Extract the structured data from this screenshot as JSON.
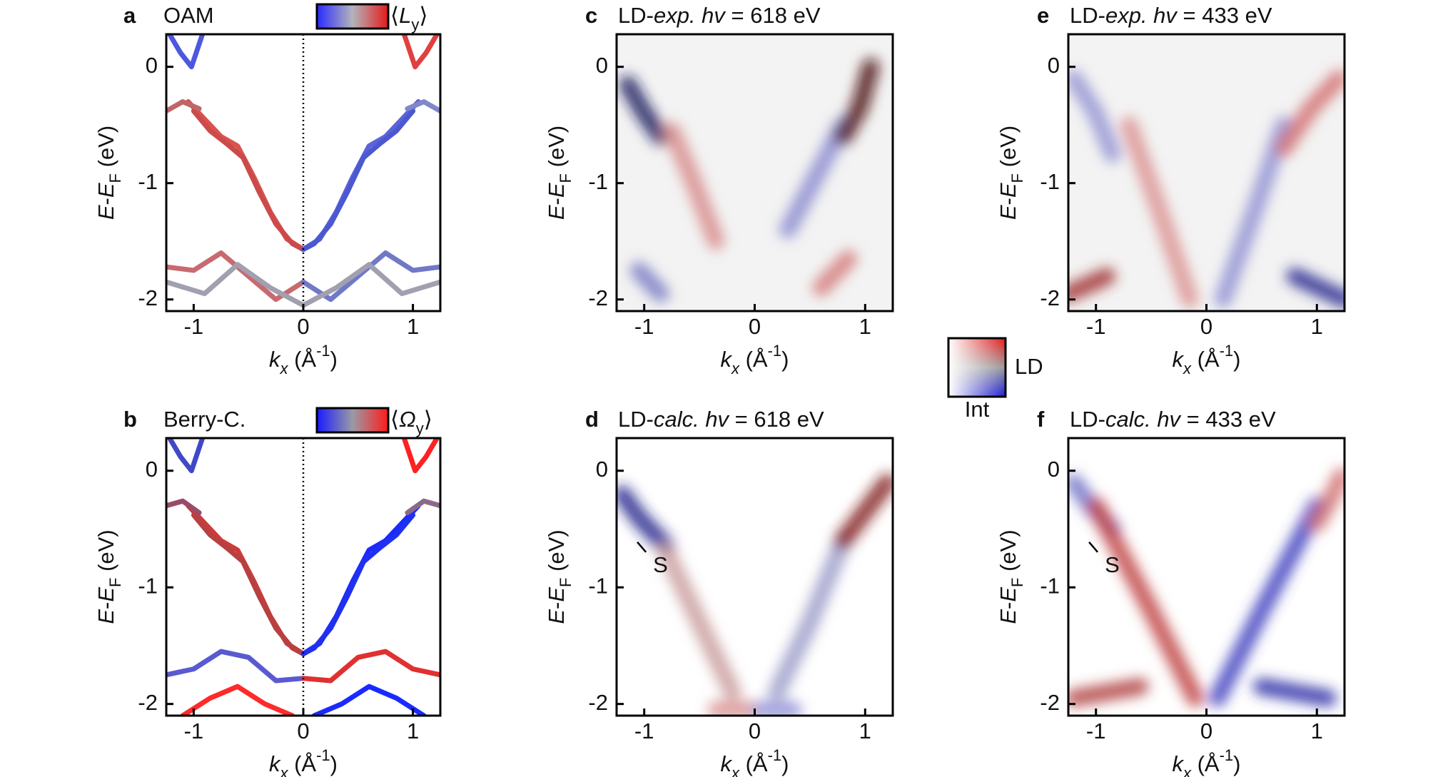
{
  "chart_data": [
    {
      "type": "line",
      "label": "a",
      "title": "OAM",
      "colorbar": {
        "colors": [
          "#2a2aff",
          "#b4b4bc",
          "#e41a1a"
        ],
        "label": [
          "⟨",
          "L",
          "y",
          "⟩"
        ]
      },
      "xlabel": [
        "k",
        "x",
        " (Å",
        "-1",
        ")"
      ],
      "ylabel": [
        "E",
        "-",
        "E",
        "F",
        " (eV)"
      ],
      "xlim": [
        -1.25,
        1.25
      ],
      "ylim": [
        -2.1,
        0.28
      ],
      "xticks": [
        -1,
        0,
        1
      ],
      "yticks": [
        -2,
        -1,
        0
      ],
      "zero_line": true,
      "series": [
        {
          "color": "#d9534f",
          "x": [
            -1.05,
            -0.9,
            -0.75,
            -0.6,
            -0.45,
            -0.3,
            -0.15,
            0
          ],
          "values": [
            -0.3,
            -0.45,
            -0.6,
            -0.68,
            -0.95,
            -1.25,
            -1.48,
            -1.57
          ]
        },
        {
          "color": "#cc4a4a",
          "x": [
            -1.0,
            -0.85,
            -0.7,
            -0.55,
            -0.4,
            -0.25,
            -0.1,
            0
          ],
          "values": [
            -0.38,
            -0.55,
            -0.66,
            -0.78,
            -1.08,
            -1.35,
            -1.52,
            -1.57
          ]
        },
        {
          "color": "#5a64d8",
          "x": [
            0,
            0.15,
            0.3,
            0.45,
            0.6,
            0.75,
            0.9,
            1.05
          ],
          "values": [
            -1.57,
            -1.48,
            -1.25,
            -0.95,
            -0.68,
            -0.6,
            -0.45,
            -0.3
          ]
        },
        {
          "color": "#4c58d0",
          "x": [
            0,
            0.1,
            0.25,
            0.4,
            0.55,
            0.7,
            0.85,
            1.0
          ],
          "values": [
            -1.57,
            -1.52,
            -1.35,
            -1.08,
            -0.78,
            -0.66,
            -0.55,
            -0.38
          ]
        },
        {
          "color": "#4c58e0",
          "x": [
            -1.22,
            -1.12,
            -1.02,
            -0.92
          ],
          "values": [
            0.28,
            0.12,
            0.0,
            0.28
          ]
        },
        {
          "color": "#c0666a",
          "x": [
            -1.25,
            -1.1,
            -0.95
          ],
          "values": [
            -0.38,
            -0.3,
            -0.36
          ]
        },
        {
          "color": "#e04040",
          "x": [
            0.92,
            1.02,
            1.12,
            1.22
          ],
          "values": [
            0.28,
            0.0,
            0.12,
            0.28
          ]
        },
        {
          "color": "#8088c8",
          "x": [
            0.95,
            1.1,
            1.25
          ],
          "values": [
            -0.36,
            -0.3,
            -0.38
          ]
        },
        {
          "color": "#c86a70",
          "x": [
            -1.25,
            -1.0,
            -0.75,
            -0.5,
            -0.25,
            0
          ],
          "values": [
            -1.72,
            -1.75,
            -1.6,
            -1.8,
            -2.0,
            -1.85
          ]
        },
        {
          "color": "#7078c8",
          "x": [
            0,
            0.25,
            0.5,
            0.75,
            1.0,
            1.25
          ],
          "values": [
            -1.85,
            -2.0,
            -1.8,
            -1.6,
            -1.75,
            -1.72
          ]
        },
        {
          "color": "#a0a0b0",
          "x": [
            -1.25,
            -0.9,
            -0.6,
            -0.3,
            0,
            0.3,
            0.6,
            0.9,
            1.25
          ],
          "values": [
            -1.85,
            -1.95,
            -1.7,
            -1.9,
            -2.05,
            -1.9,
            -1.7,
            -1.95,
            -1.85
          ]
        }
      ]
    },
    {
      "type": "line",
      "label": "b",
      "title": "Berry-C.",
      "colorbar": {
        "colors": [
          "#1a1aff",
          "#9a9aa6",
          "#ff1a1a"
        ],
        "label": [
          "⟨",
          "Ω",
          "y",
          "⟩"
        ]
      },
      "xlabel": [
        "k",
        "x",
        " (Å",
        "-1",
        ")"
      ],
      "ylabel": [
        "E",
        "-",
        "E",
        "F",
        " (eV)"
      ],
      "xlim": [
        -1.25,
        1.25
      ],
      "ylim": [
        -2.1,
        0.28
      ],
      "xticks": [
        -1,
        0,
        1
      ],
      "yticks": [
        -2,
        -1,
        0
      ],
      "zero_line": true,
      "series": [
        {
          "color": "#cc3b3b",
          "x": [
            -1.05,
            -0.9,
            -0.75,
            -0.6,
            -0.45,
            -0.3,
            -0.15,
            0
          ],
          "values": [
            -0.3,
            -0.45,
            -0.6,
            -0.68,
            -0.95,
            -1.25,
            -1.48,
            -1.57
          ]
        },
        {
          "color": "#b84040",
          "x": [
            -1.0,
            -0.85,
            -0.7,
            -0.55,
            -0.4,
            -0.25,
            -0.1,
            0
          ],
          "values": [
            -0.38,
            -0.55,
            -0.66,
            -0.78,
            -1.08,
            -1.35,
            -1.52,
            -1.57
          ]
        },
        {
          "color": "#1a2aff",
          "x": [
            0,
            0.15,
            0.3,
            0.45,
            0.6,
            0.75,
            0.9,
            1.05
          ],
          "values": [
            -1.57,
            -1.48,
            -1.25,
            -0.95,
            -0.68,
            -0.6,
            -0.45,
            -0.3
          ]
        },
        {
          "color": "#2030f0",
          "x": [
            0,
            0.1,
            0.25,
            0.4,
            0.55,
            0.7,
            0.85,
            1.0
          ],
          "values": [
            -1.57,
            -1.52,
            -1.35,
            -1.08,
            -0.78,
            -0.66,
            -0.55,
            -0.38
          ]
        },
        {
          "color": "#4048c8",
          "x": [
            -1.22,
            -1.12,
            -1.02,
            -0.92
          ],
          "values": [
            0.28,
            0.12,
            0.0,
            0.28
          ]
        },
        {
          "color": "#9a4a6a",
          "x": [
            -1.25,
            -1.1,
            -0.95
          ],
          "values": [
            -0.3,
            -0.26,
            -0.36
          ]
        },
        {
          "color": "#ff2020",
          "x": [
            0.92,
            1.02,
            1.12,
            1.22
          ],
          "values": [
            0.28,
            0.0,
            0.12,
            0.28
          ]
        },
        {
          "color": "#8a6a8a",
          "x": [
            0.95,
            1.1,
            1.25
          ],
          "values": [
            -0.36,
            -0.26,
            -0.3
          ]
        },
        {
          "color": "#ff2a2a",
          "x": [
            -1.1,
            -0.85,
            -0.6,
            -0.35,
            -0.1
          ],
          "values": [
            -2.1,
            -1.95,
            -1.85,
            -2.0,
            -2.1
          ]
        },
        {
          "color": "#1a2aff",
          "x": [
            0.1,
            0.35,
            0.6,
            0.85,
            1.1
          ],
          "values": [
            -2.1,
            -2.0,
            -1.85,
            -1.95,
            -2.1
          ]
        },
        {
          "color": "#5a5ad0",
          "x": [
            -1.25,
            -1.0,
            -0.75,
            -0.5,
            -0.25,
            0
          ],
          "values": [
            -1.75,
            -1.7,
            -1.55,
            -1.6,
            -1.8,
            -1.78
          ]
        },
        {
          "color": "#e03030",
          "x": [
            0,
            0.25,
            0.5,
            0.75,
            1.0,
            1.25
          ],
          "values": [
            -1.78,
            -1.8,
            -1.6,
            -1.55,
            -1.7,
            -1.75
          ]
        }
      ]
    },
    {
      "type": "heatmap",
      "label": "c",
      "title": [
        "LD-",
        "exp.",
        " hv",
        " = 618 eV"
      ],
      "background": "#f3f3f3",
      "xlabel": [
        "k",
        "x",
        " (Å",
        "-1",
        ")"
      ],
      "ylabel": [
        "E",
        "-",
        "E",
        "F",
        " (eV)"
      ],
      "xlim": [
        -1.25,
        1.25
      ],
      "ylim": [
        -2.1,
        0.28
      ],
      "xticks": [
        -1,
        0,
        1
      ],
      "yticks": [
        -2,
        -1,
        0
      ],
      "series": [
        {
          "color": "#15155e",
          "x": [
            -1.15,
            -1.0,
            -0.85
          ],
          "values": [
            -0.15,
            -0.4,
            -0.6
          ]
        },
        {
          "color": "#d88a8a",
          "x": [
            -0.75,
            -0.55,
            -0.35
          ],
          "values": [
            -0.55,
            -1.0,
            -1.5
          ]
        },
        {
          "color": "#8a8ad0",
          "x": [
            0.3,
            0.55,
            0.8
          ],
          "values": [
            -1.4,
            -0.95,
            -0.5
          ]
        },
        {
          "color": "#4a0e0e",
          "x": [
            0.8,
            0.95,
            1.05
          ],
          "values": [
            -0.6,
            -0.35,
            0.0
          ]
        },
        {
          "color": "#7a7ac4",
          "x": [
            -1.05,
            -0.85
          ],
          "values": [
            -1.75,
            -1.95
          ]
        },
        {
          "color": "#d47a7a",
          "x": [
            0.6,
            0.85
          ],
          "values": [
            -1.9,
            -1.65
          ]
        }
      ]
    },
    {
      "type": "heatmap",
      "label": "d",
      "title": [
        "LD-",
        "calc.",
        " hv",
        " = 618 eV"
      ],
      "background": "#ffffff",
      "xlabel": [
        "k",
        "x",
        " (Å",
        "-1",
        ")"
      ],
      "ylabel": [
        "E",
        "-",
        "E",
        "F",
        " (eV)"
      ],
      "xlim": [
        -1.25,
        1.25
      ],
      "ylim": [
        -2.1,
        0.28
      ],
      "xticks": [
        -1,
        0,
        1
      ],
      "yticks": [
        -2,
        -1,
        0
      ],
      "annotation": {
        "text": "S",
        "x": -0.92,
        "y": -0.82
      },
      "series": [
        {
          "color": "#22228a",
          "x": [
            -1.2,
            -1.05,
            -0.8
          ],
          "values": [
            -0.2,
            -0.4,
            -0.65
          ]
        },
        {
          "color": "#c89a9a",
          "x": [
            -0.8,
            -0.45,
            -0.2
          ],
          "values": [
            -0.7,
            -1.4,
            -1.9
          ]
        },
        {
          "color": "#9a9ac8",
          "x": [
            0.2,
            0.5,
            0.8
          ],
          "values": [
            -1.9,
            -1.3,
            -0.6
          ]
        },
        {
          "color": "#801818",
          "x": [
            0.8,
            1.0,
            1.2
          ],
          "values": [
            -0.6,
            -0.35,
            -0.1
          ]
        },
        {
          "color": "#d89090",
          "x": [
            -0.35,
            -0.05
          ],
          "values": [
            -2.05,
            -2.05
          ]
        },
        {
          "color": "#9090d8",
          "x": [
            0.05,
            0.35
          ],
          "values": [
            -2.05,
            -2.05
          ]
        }
      ]
    },
    {
      "type": "heatmap",
      "label": "e",
      "title": [
        "LD-",
        "exp.",
        " hv",
        " = 433 eV"
      ],
      "background": "#f3f3f3",
      "xlabel": [
        "k",
        "x",
        " (Å",
        "-1",
        ")"
      ],
      "ylabel": [
        "E",
        "-",
        "E",
        "F",
        " (eV)"
      ],
      "xlim": [
        -1.25,
        1.25
      ],
      "ylim": [
        -2.1,
        0.28
      ],
      "xticks": [
        -1,
        0,
        1
      ],
      "yticks": [
        -2,
        -1,
        0
      ],
      "series": [
        {
          "color": "#9494d4",
          "x": [
            -1.2,
            -1.0,
            -0.85
          ],
          "values": [
            -0.1,
            -0.4,
            -0.75
          ]
        },
        {
          "color": "#dc9090",
          "x": [
            -0.7,
            -0.4,
            -0.15
          ],
          "values": [
            -0.5,
            -1.3,
            -2.0
          ]
        },
        {
          "color": "#9090d4",
          "x": [
            0.15,
            0.45,
            0.7
          ],
          "values": [
            -2.0,
            -1.2,
            -0.5
          ]
        },
        {
          "color": "#d47070",
          "x": [
            0.7,
            0.95,
            1.2
          ],
          "values": [
            -0.7,
            -0.35,
            -0.1
          ]
        },
        {
          "color": "#a03030",
          "x": [
            -1.25,
            -0.9
          ],
          "values": [
            -1.95,
            -1.8
          ]
        },
        {
          "color": "#2a2a90",
          "x": [
            0.8,
            1.25
          ],
          "values": [
            -1.8,
            -2.0
          ]
        }
      ]
    },
    {
      "type": "heatmap",
      "label": "f",
      "title": [
        "LD-",
        "calc.",
        " hv",
        " = 433 eV"
      ],
      "background": "#ffffff",
      "xlabel": [
        "k",
        "x",
        " (Å",
        "-1",
        ")"
      ],
      "ylabel": [
        "E",
        "-",
        "E",
        "F",
        " (eV)"
      ],
      "xlim": [
        -1.25,
        1.25
      ],
      "ylim": [
        -2.1,
        0.28
      ],
      "xticks": [
        -1,
        0,
        1
      ],
      "yticks": [
        -2,
        -1,
        0
      ],
      "annotation": {
        "text": "S",
        "x": -0.92,
        "y": -0.82
      },
      "series": [
        {
          "color": "#7070c8",
          "x": [
            -1.2,
            -1.05,
            -0.85
          ],
          "values": [
            -0.1,
            -0.3,
            -0.5
          ]
        },
        {
          "color": "#c04040",
          "x": [
            -1.0,
            -0.5,
            -0.1
          ],
          "values": [
            -0.3,
            -1.2,
            -1.95
          ]
        },
        {
          "color": "#4040c0",
          "x": [
            0.1,
            0.5,
            1.0
          ],
          "values": [
            -1.95,
            -1.2,
            -0.3
          ]
        },
        {
          "color": "#d07070",
          "x": [
            1.0,
            1.12,
            1.22
          ],
          "values": [
            -0.45,
            -0.25,
            -0.05
          ]
        },
        {
          "color": "#b04040",
          "x": [
            -1.2,
            -0.6
          ],
          "values": [
            -1.95,
            -1.85
          ]
        },
        {
          "color": "#3030a8",
          "x": [
            0.5,
            1.1
          ],
          "values": [
            -1.85,
            -1.95
          ]
        }
      ]
    }
  ],
  "shared_colorbar": {
    "colors": [
      "#e81818",
      "#9a9a9a",
      "#1a1ad8"
    ],
    "labels": [
      "LD",
      "Int"
    ]
  }
}
